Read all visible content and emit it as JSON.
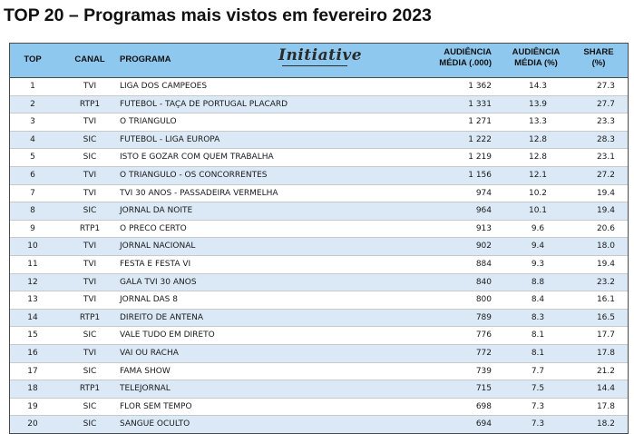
{
  "title": "TOP 20 – Programas mais vistos em fevereiro 2023",
  "logo_text": "Initiative",
  "headers": {
    "top": "TOP",
    "canal": "CANAL",
    "programa": "PROGRAMA",
    "aud_media_1": "AUDIÊNCIA",
    "aud_media_2": "MÉDIA (.000)",
    "aud_pct_1": "AUDIÊNCIA",
    "aud_pct_2": "MÉDIA (%)",
    "share_1": "SHARE",
    "share_2": "(%)"
  },
  "rows": [
    {
      "top": "1",
      "canal": "TVI",
      "programa": "LIGA DOS CAMPEOES",
      "aud": "1 362",
      "audp": "14.3",
      "share": "27.3"
    },
    {
      "top": "2",
      "canal": "RTP1",
      "programa": "FUTEBOL - TAÇA DE PORTUGAL PLACARD",
      "aud": "1 331",
      "audp": "13.9",
      "share": "27.7"
    },
    {
      "top": "3",
      "canal": "TVI",
      "programa": "O TRIANGULO",
      "aud": "1 271",
      "audp": "13.3",
      "share": "23.3"
    },
    {
      "top": "4",
      "canal": "SIC",
      "programa": "FUTEBOL - LIGA EUROPA",
      "aud": "1 222",
      "audp": "12.8",
      "share": "28.3"
    },
    {
      "top": "5",
      "canal": "SIC",
      "programa": "ISTO E GOZAR COM QUEM TRABALHA",
      "aud": "1 219",
      "audp": "12.8",
      "share": "23.1"
    },
    {
      "top": "6",
      "canal": "TVI",
      "programa": "O TRIANGULO - OS CONCORRENTES",
      "aud": "1 156",
      "audp": "12.1",
      "share": "27.2"
    },
    {
      "top": "7",
      "canal": "TVI",
      "programa": "TVI 30 ANOS - PASSADEIRA VERMELHA",
      "aud": "974",
      "audp": "10.2",
      "share": "19.4"
    },
    {
      "top": "8",
      "canal": "SIC",
      "programa": "JORNAL DA NOITE",
      "aud": "964",
      "audp": "10.1",
      "share": "19.4"
    },
    {
      "top": "9",
      "canal": "RTP1",
      "programa": "O PRECO CERTO",
      "aud": "913",
      "audp": "9.6",
      "share": "20.6"
    },
    {
      "top": "10",
      "canal": "TVI",
      "programa": "JORNAL NACIONAL",
      "aud": "902",
      "audp": "9.4",
      "share": "18.0"
    },
    {
      "top": "11",
      "canal": "TVI",
      "programa": "FESTA E FESTA VI",
      "aud": "884",
      "audp": "9.3",
      "share": "19.4"
    },
    {
      "top": "12",
      "canal": "TVI",
      "programa": "GALA TVI 30 ANOS",
      "aud": "840",
      "audp": "8.8",
      "share": "23.2"
    },
    {
      "top": "13",
      "canal": "TVI",
      "programa": "JORNAL DAS 8",
      "aud": "800",
      "audp": "8.4",
      "share": "16.1"
    },
    {
      "top": "14",
      "canal": "RTP1",
      "programa": "DIREITO DE ANTENA",
      "aud": "789",
      "audp": "8.3",
      "share": "16.5"
    },
    {
      "top": "15",
      "canal": "SIC",
      "programa": "VALE TUDO EM DIRETO",
      "aud": "776",
      "audp": "8.1",
      "share": "17.7"
    },
    {
      "top": "16",
      "canal": "TVI",
      "programa": "VAI OU RACHA",
      "aud": "772",
      "audp": "8.1",
      "share": "17.8"
    },
    {
      "top": "17",
      "canal": "SIC",
      "programa": "FAMA SHOW",
      "aud": "739",
      "audp": "7.7",
      "share": "21.2"
    },
    {
      "top": "18",
      "canal": "RTP1",
      "programa": "TELEJORNAL",
      "aud": "715",
      "audp": "7.5",
      "share": "14.4"
    },
    {
      "top": "19",
      "canal": "SIC",
      "programa": "FLOR SEM TEMPO",
      "aud": "698",
      "audp": "7.3",
      "share": "17.8"
    },
    {
      "top": "20",
      "canal": "SIC",
      "programa": "SANGUE OCULTO",
      "aud": "694",
      "audp": "7.3",
      "share": "18.2"
    }
  ]
}
